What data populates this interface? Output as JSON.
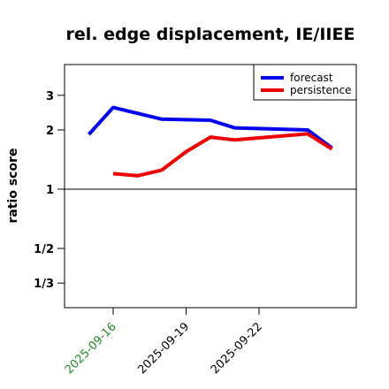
{
  "chart_data": {
    "type": "line",
    "title": "rel. edge displacement, IE/IIEE",
    "ylabel": "ratio score",
    "xlabel": "",
    "y_scale": "log",
    "ylim": [
      0.25,
      4.3
    ],
    "xlim": [
      "2025-09-14",
      "2025-09-26"
    ],
    "x_ticks": [
      {
        "label": "2025-09-16",
        "date": "2025-09-16",
        "color": "#228B22"
      },
      {
        "label": "2025-09-19",
        "date": "2025-09-19",
        "color": "#000000"
      },
      {
        "label": "2025-09-22",
        "date": "2025-09-22",
        "color": "#000000"
      }
    ],
    "y_ticks": [
      {
        "label": "1/3",
        "value": 0.3333
      },
      {
        "label": "1/2",
        "value": 0.5
      },
      {
        "label": "1",
        "value": 1
      },
      {
        "label": "2",
        "value": 2
      },
      {
        "label": "3",
        "value": 3
      }
    ],
    "reference_line": 1,
    "grid": false,
    "legend_position": "top-right",
    "series": [
      {
        "name": "forecast",
        "color": "#0000ee",
        "x": [
          "2025-09-15",
          "2025-09-16",
          "2025-09-18",
          "2025-09-20",
          "2025-09-21",
          "2025-09-24",
          "2025-09-25"
        ],
        "y": [
          1.9,
          2.6,
          2.27,
          2.24,
          2.05,
          2.0,
          1.62
        ]
      },
      {
        "name": "persistence",
        "color": "#ee0000",
        "x": [
          "2025-09-16",
          "2025-09-17",
          "2025-09-18",
          "2025-09-19",
          "2025-09-20",
          "2025-09-21",
          "2025-09-24",
          "2025-09-25"
        ],
        "y": [
          1.2,
          1.17,
          1.25,
          1.55,
          1.84,
          1.78,
          1.91,
          1.6
        ]
      }
    ]
  }
}
